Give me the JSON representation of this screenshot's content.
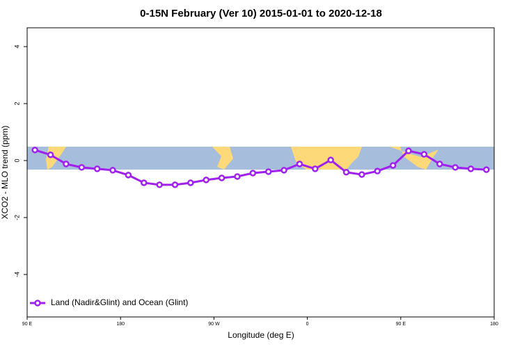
{
  "chart_data": {
    "type": "line",
    "title": "0-15N February (Ver 10)   2015-01-01 to 2020-12-18",
    "x_label": "Longitude (deg E)",
    "y_label": "XCO2 - MLO trend (ppm)",
    "x": [
      97.5,
      112.5,
      127.5,
      142.5,
      157.5,
      172.5,
      187.5,
      202.5,
      217.5,
      232.5,
      247.5,
      262.5,
      277.5,
      292.5,
      307.5,
      322.5,
      337.5,
      352.5,
      367.5,
      382.5,
      397.5,
      412.5,
      427.5,
      442.5,
      457.5,
      472.5,
      487.5,
      502.5,
      517.5,
      532.5
    ],
    "series": [
      {
        "name": "Land (Nadir&Glint) and Ocean (Glint)",
        "color": "#a020f0",
        "values": [
          0.37,
          0.2,
          -0.12,
          -0.24,
          -0.29,
          -0.34,
          -0.51,
          -0.78,
          -0.85,
          -0.85,
          -0.78,
          -0.68,
          -0.61,
          -0.56,
          -0.44,
          -0.39,
          -0.34,
          -0.12,
          -0.29,
          0.02,
          -0.41,
          -0.49,
          -0.37,
          -0.17,
          0.34,
          0.22,
          -0.12,
          -0.24,
          -0.29,
          -0.32
        ]
      }
    ],
    "xlim": [
      90,
      540
    ],
    "xticks": [
      {
        "value": 90,
        "label": "90 E"
      },
      180,
      {
        "value": 270,
        "label": "90 W"
      },
      {
        "value": 360,
        "label": "0"
      },
      {
        "value": 450,
        "label": "90 E"
      },
      {
        "value": 540,
        "label": "180"
      }
    ],
    "ylim": [
      -5.49,
      4.66
    ],
    "yticks": [
      -4,
      -2,
      0,
      2,
      4
    ],
    "legend": "bottom-left"
  }
}
